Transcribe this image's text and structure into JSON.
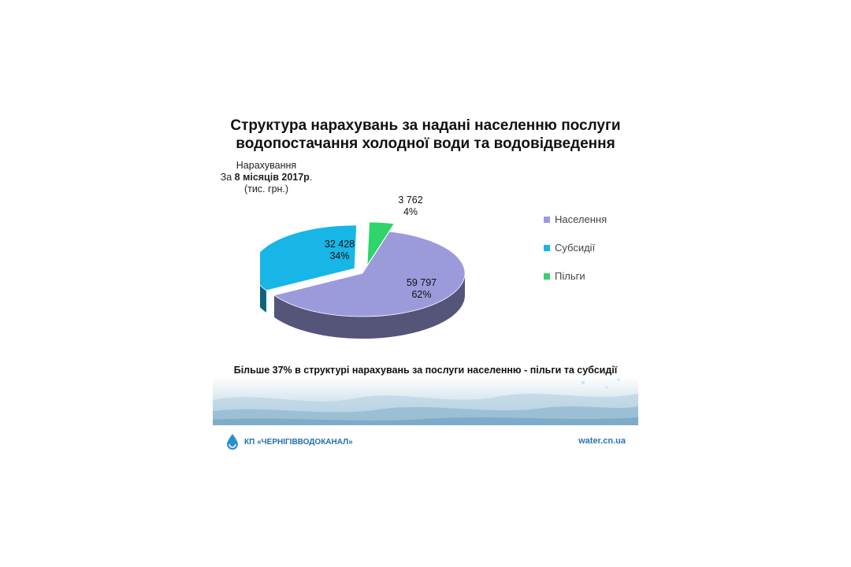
{
  "chart_data": {
    "type": "pie",
    "title": "Структура нарахувань за надані населенню послуги водопостачання холодної води та водовідведення",
    "subtitle": {
      "line1": "Нарахування",
      "line2_prefix": "За ",
      "line2_bold": "8 місяців 2017р",
      "line2_suffix": ".",
      "line3": "(тис. грн.)"
    },
    "slices": [
      {
        "name": "Населення",
        "value": 59797,
        "value_label": "59 797",
        "percent_label": "62%",
        "color": "#9b9bdc"
      },
      {
        "name": "Субсидії",
        "value": 32428,
        "value_label": "32 428",
        "percent_label": "34%",
        "color": "#17b6e6"
      },
      {
        "name": "Пільги",
        "value": 3762,
        "value_label": "3 762",
        "percent_label": "4%",
        "color": "#2fd46a"
      }
    ],
    "legend_position": "right"
  },
  "footnote": "Більше 37% в структурі нарахувань за послуги населенню - пільги та субсидії",
  "footer": {
    "brand": "КП «ЧЕРНІГІВВОДОКАНАЛ»",
    "site": "water.cn.ua"
  }
}
